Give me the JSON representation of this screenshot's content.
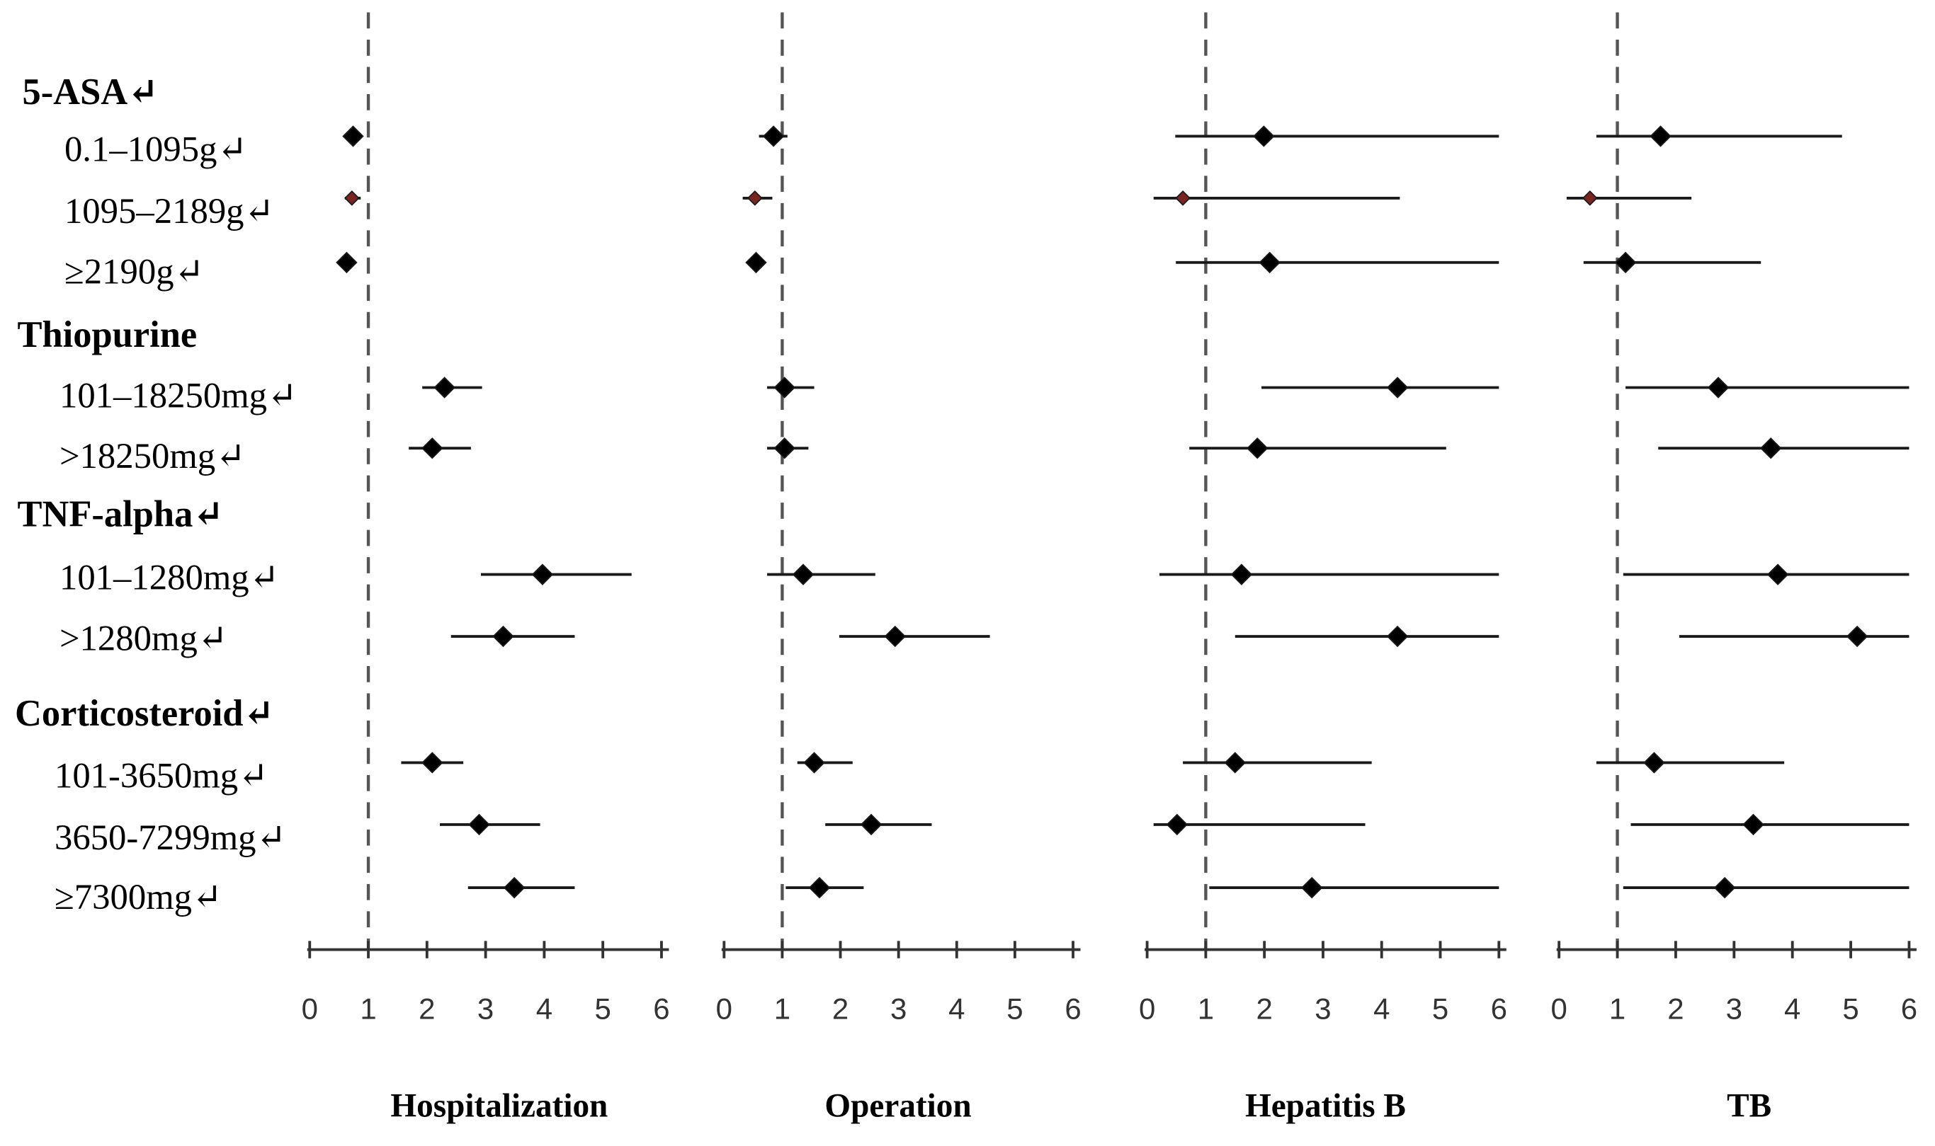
{
  "chart_data": {
    "type": "scatter",
    "groups": [
      {
        "label": "5-ASA↵",
        "rows": [
          "0.1–1095g↵",
          "1095–2189g↵",
          "≥2190g↵"
        ]
      },
      {
        "label": "Thiopurine",
        "rows": [
          "101–18250mg↵",
          ">18250mg↵"
        ]
      },
      {
        "label": "TNF-alpha↵",
        "rows": [
          "101–1280mg↵",
          ">1280mg↵"
        ]
      },
      {
        "label": "Corticosteroid↵",
        "rows": [
          "101-3650mg↵",
          "3650-7299mg↵",
          "≥7300mg↵"
        ]
      }
    ],
    "row_marker_colors": [
      "#000000",
      "#7a2323",
      "#000000",
      "#000000",
      "#000000",
      "#000000",
      "#000000",
      "#000000",
      "#000000",
      "#000000"
    ],
    "ci_color": "#1a1a1a",
    "reference_line_color": "#555555",
    "axis_color": "#333333",
    "panels": [
      {
        "title": "Hospitalization",
        "xlim": [
          0,
          6
        ],
        "xticks": [
          0,
          1,
          2,
          3,
          4,
          5,
          6
        ],
        "reference_line": 1,
        "estimate": [
          0.74,
          0.72,
          0.63,
          2.3,
          2.09,
          3.97,
          3.3,
          2.09,
          2.89,
          3.49
        ],
        "lower": [
          0.68,
          0.6,
          0.58,
          1.92,
          1.69,
          2.92,
          2.41,
          1.56,
          2.22,
          2.7
        ],
        "upper": [
          0.8,
          0.87,
          0.69,
          2.94,
          2.75,
          5.49,
          4.52,
          2.62,
          3.93,
          4.52
        ]
      },
      {
        "title": "Operation",
        "xlim": [
          0,
          6
        ],
        "xticks": [
          0,
          1,
          2,
          3,
          4,
          5,
          6
        ],
        "reference_line": 1,
        "estimate": [
          0.85,
          0.53,
          0.55,
          1.04,
          1.04,
          1.36,
          2.94,
          1.55,
          2.53,
          1.64
        ],
        "lower": [
          0.6,
          0.32,
          0.4,
          0.74,
          0.74,
          0.74,
          1.98,
          1.26,
          1.74,
          1.06
        ],
        "upper": [
          1.09,
          0.83,
          0.7,
          1.55,
          1.45,
          2.6,
          4.57,
          2.21,
          3.57,
          2.4
        ]
      },
      {
        "title": "Hepatitis B",
        "xlim": [
          0,
          6
        ],
        "xticks": [
          0,
          1,
          2,
          3,
          4,
          5,
          6
        ],
        "reference_line": 1,
        "estimate": [
          1.99,
          0.61,
          2.09,
          4.27,
          1.88,
          1.61,
          4.27,
          1.5,
          0.51,
          2.81
        ],
        "lower": [
          0.48,
          0.11,
          0.49,
          1.95,
          0.72,
          0.21,
          1.5,
          0.61,
          0.11,
          1.06
        ],
        "upper": [
          6,
          4.31,
          6,
          6,
          5.1,
          6,
          6,
          3.83,
          3.72,
          6
        ]
      },
      {
        "title": "TB",
        "xlim": [
          0,
          6
        ],
        "xticks": [
          0,
          1,
          2,
          3,
          4,
          5,
          6
        ],
        "reference_line": 1,
        "estimate": [
          1.74,
          0.53,
          1.14,
          2.73,
          3.63,
          3.75,
          5.11,
          1.63,
          3.33,
          2.84
        ],
        "lower": [
          0.64,
          0.13,
          0.42,
          1.14,
          1.7,
          1.1,
          2.06,
          0.64,
          1.23,
          1.1
        ],
        "upper": [
          4.85,
          2.27,
          3.46,
          6,
          6,
          6,
          6,
          3.86,
          6,
          6
        ]
      }
    ]
  }
}
